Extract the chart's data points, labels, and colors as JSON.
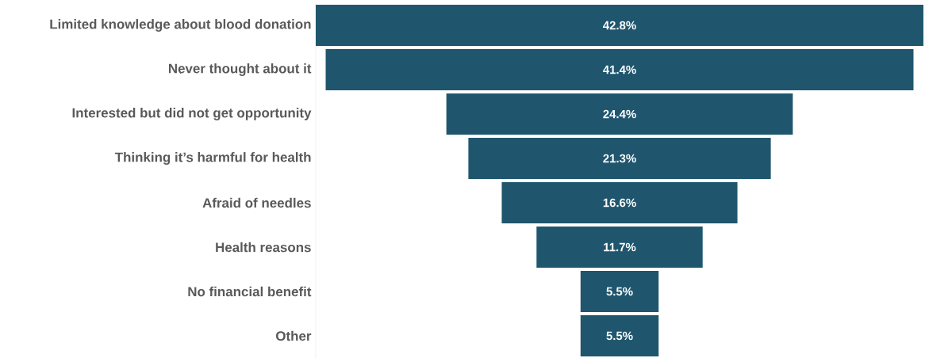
{
  "chart_data": {
    "type": "other",
    "categories": [
      "Limited knowledge about blood donation",
      "Never thought about it",
      "Interested but did not get opportunity",
      "Thinking it’s harmful for health",
      "Afraid of needles",
      "Health reasons",
      "No financial benefit",
      "Other"
    ],
    "values": [
      42.8,
      41.4,
      24.4,
      21.3,
      16.6,
      11.7,
      5.5,
      5.5
    ],
    "color": "#1f566e",
    "value_labels": [
      "42.8%",
      "41.4%",
      "24.4%",
      "21.3%",
      "16.6%",
      "11.7%",
      "5.5%",
      "5.5%"
    ]
  }
}
